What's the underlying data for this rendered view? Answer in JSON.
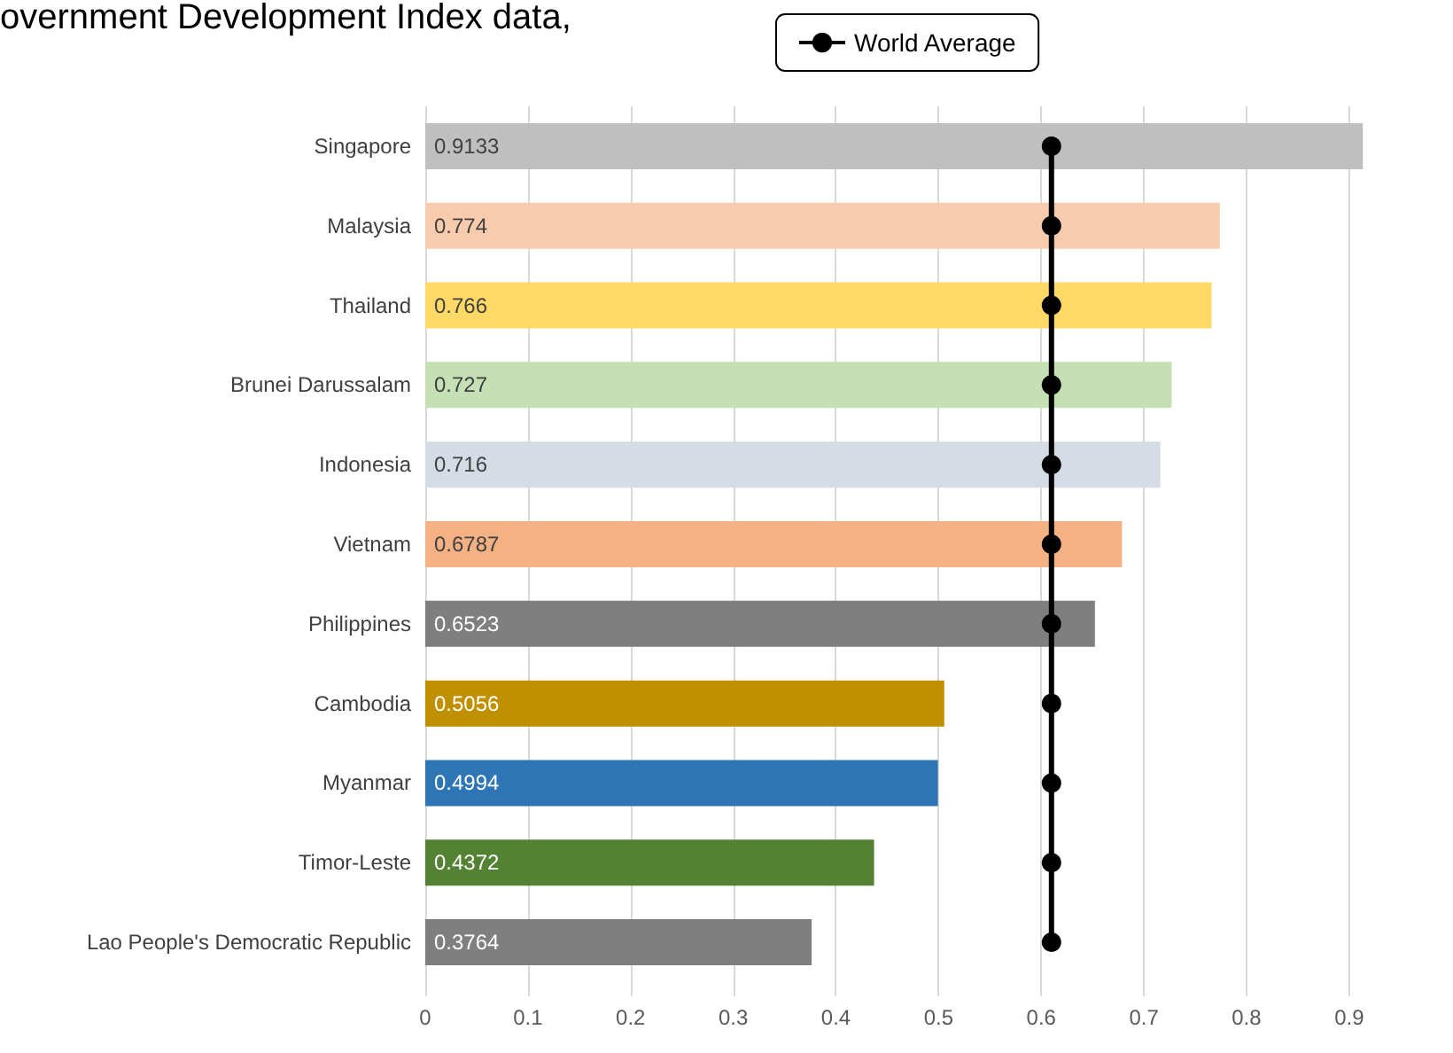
{
  "chart_data": {
    "type": "bar",
    "orientation": "horizontal",
    "title": "overnment Development Index data,",
    "categories": [
      "Singapore",
      "Malaysia",
      "Thailand",
      "Brunei Darussalam",
      "Indonesia",
      "Vietnam",
      "Philippines",
      "Cambodia",
      "Myanmar",
      "Timor-Leste",
      "Lao People's Democratic Republic"
    ],
    "series": [
      {
        "values": [
          0.9133,
          0.774,
          0.766,
          0.727,
          0.716,
          0.6787,
          0.6523,
          0.5056,
          0.4994,
          0.4372,
          0.3764
        ],
        "value_labels": [
          "0.9133",
          "0.774",
          "0.766",
          "0.727",
          "0.716",
          "0.6787",
          "0.6523",
          "0.5056",
          "0.4994",
          "0.4372",
          "0.3764"
        ],
        "colors": [
          "#bfbfbf",
          "#f8cbad",
          "#ffd966",
          "#c5e0b4",
          "#d6dce5",
          "#f4b183",
          "#7f7f7f",
          "#bf9000",
          "#2e75b6",
          "#548235",
          "#7f7f7f"
        ]
      },
      {
        "type": "line",
        "name": "World Average",
        "color": "#000000",
        "values": [
          0.61,
          0.61,
          0.61,
          0.61,
          0.61,
          0.61,
          0.61,
          0.61,
          0.61,
          0.61,
          0.61
        ]
      }
    ],
    "xlim": [
      0,
      0.92
    ],
    "xticks": [
      0,
      0.1,
      0.2,
      0.3,
      0.4,
      0.5,
      0.6,
      0.7,
      0.8,
      0.9
    ],
    "grid": "x",
    "legend": "top",
    "marker": "circle",
    "line_style": "solid"
  }
}
